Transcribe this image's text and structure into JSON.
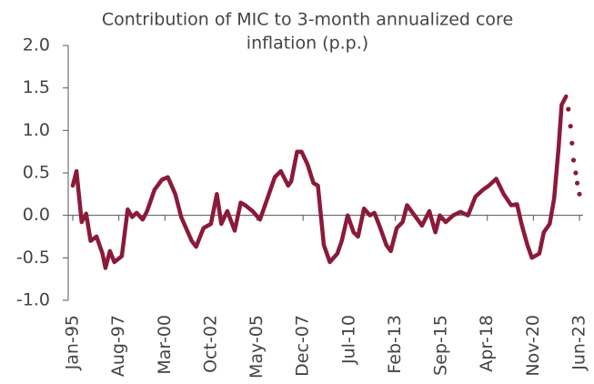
{
  "chart_data": {
    "type": "line",
    "title": [
      "Contribution of MIC to 3-month annualized core",
      "inflation (p.p.)"
    ],
    "xlim": [
      0,
      341
    ],
    "xticks": [
      {
        "value": 0,
        "label": "Jan-95"
      },
      {
        "value": 31,
        "label": "Aug-97"
      },
      {
        "value": 62,
        "label": "Mar-00"
      },
      {
        "value": 93,
        "label": "Oct-02"
      },
      {
        "value": 124,
        "label": "May-05"
      },
      {
        "value": 155,
        "label": "Dec-07"
      },
      {
        "value": 186,
        "label": "Jul-10"
      },
      {
        "value": 217,
        "label": "Feb-13"
      },
      {
        "value": 248,
        "label": "Sep-15"
      },
      {
        "value": 279,
        "label": "Apr-18"
      },
      {
        "value": 310,
        "label": "Nov-20"
      },
      {
        "value": 341,
        "label": "Jun-23"
      }
    ],
    "ylim": [
      -1.0,
      2.0
    ],
    "yticks": [
      {
        "value": 2.0,
        "label": "2.0"
      },
      {
        "value": 1.5,
        "label": "1.5"
      },
      {
        "value": 1.0,
        "label": "1.0"
      },
      {
        "value": 0.5,
        "label": "0.5"
      },
      {
        "value": 0.0,
        "label": "0.0"
      },
      {
        "value": -0.5,
        "label": "-0.5"
      },
      {
        "value": -1.0,
        "label": "-1.0"
      }
    ],
    "series": [
      {
        "color": "#8b1a3a",
        "dotted": false,
        "x": [
          0,
          2.5,
          6,
          9,
          12,
          16,
          20,
          22,
          25,
          28,
          33,
          37,
          40,
          43,
          47,
          50,
          55,
          60,
          64,
          69,
          73,
          80,
          83,
          88,
          93,
          97,
          100,
          104,
          109,
          113,
          116,
          121,
          126,
          131,
          136,
          140,
          145,
          147,
          151,
          154,
          158,
          162,
          165,
          169,
          173,
          178,
          181,
          185,
          189,
          192,
          196,
          200,
          203,
          207,
          211,
          214,
          218,
          222,
          225,
          230,
          235,
          240,
          244,
          247,
          251,
          256,
          261,
          266,
          271,
          276,
          280,
          285,
          290,
          295,
          299,
          302,
          306,
          309,
          314,
          317,
          321,
          324,
          327,
          329,
          332
        ],
        "values": [
          0.35,
          0.52,
          -0.08,
          0.02,
          -0.3,
          -0.25,
          -0.45,
          -0.62,
          -0.42,
          -0.55,
          -0.48,
          0.07,
          -0.02,
          0.03,
          -0.05,
          0.05,
          0.3,
          0.42,
          0.45,
          0.25,
          -0.02,
          -0.3,
          -0.37,
          -0.15,
          -0.1,
          0.25,
          -0.1,
          0.05,
          -0.18,
          0.15,
          0.12,
          0.05,
          -0.05,
          0.2,
          0.45,
          0.52,
          0.35,
          0.4,
          0.75,
          0.75,
          0.6,
          0.38,
          0.35,
          -0.35,
          -0.55,
          -0.45,
          -0.3,
          0.0,
          -0.2,
          -0.25,
          0.08,
          0.0,
          0.03,
          -0.15,
          -0.35,
          -0.42,
          -0.15,
          -0.08,
          0.12,
          0.0,
          -0.12,
          0.05,
          -0.2,
          0.0,
          -0.08,
          0.0,
          0.04,
          0.0,
          0.22,
          0.3,
          0.35,
          0.43,
          0.25,
          0.12,
          0.13,
          -0.1,
          -0.35,
          -0.5,
          -0.45,
          -0.2,
          -0.1,
          0.2,
          0.8,
          1.3,
          1.4
        ]
      },
      {
        "color": "#8b1a3a",
        "dotted": true,
        "x": [
          333.5,
          335,
          336,
          337,
          338.5,
          339.5,
          341
        ],
        "values": [
          1.25,
          1.05,
          0.85,
          0.65,
          0.5,
          0.38,
          0.25
        ]
      }
    ]
  }
}
